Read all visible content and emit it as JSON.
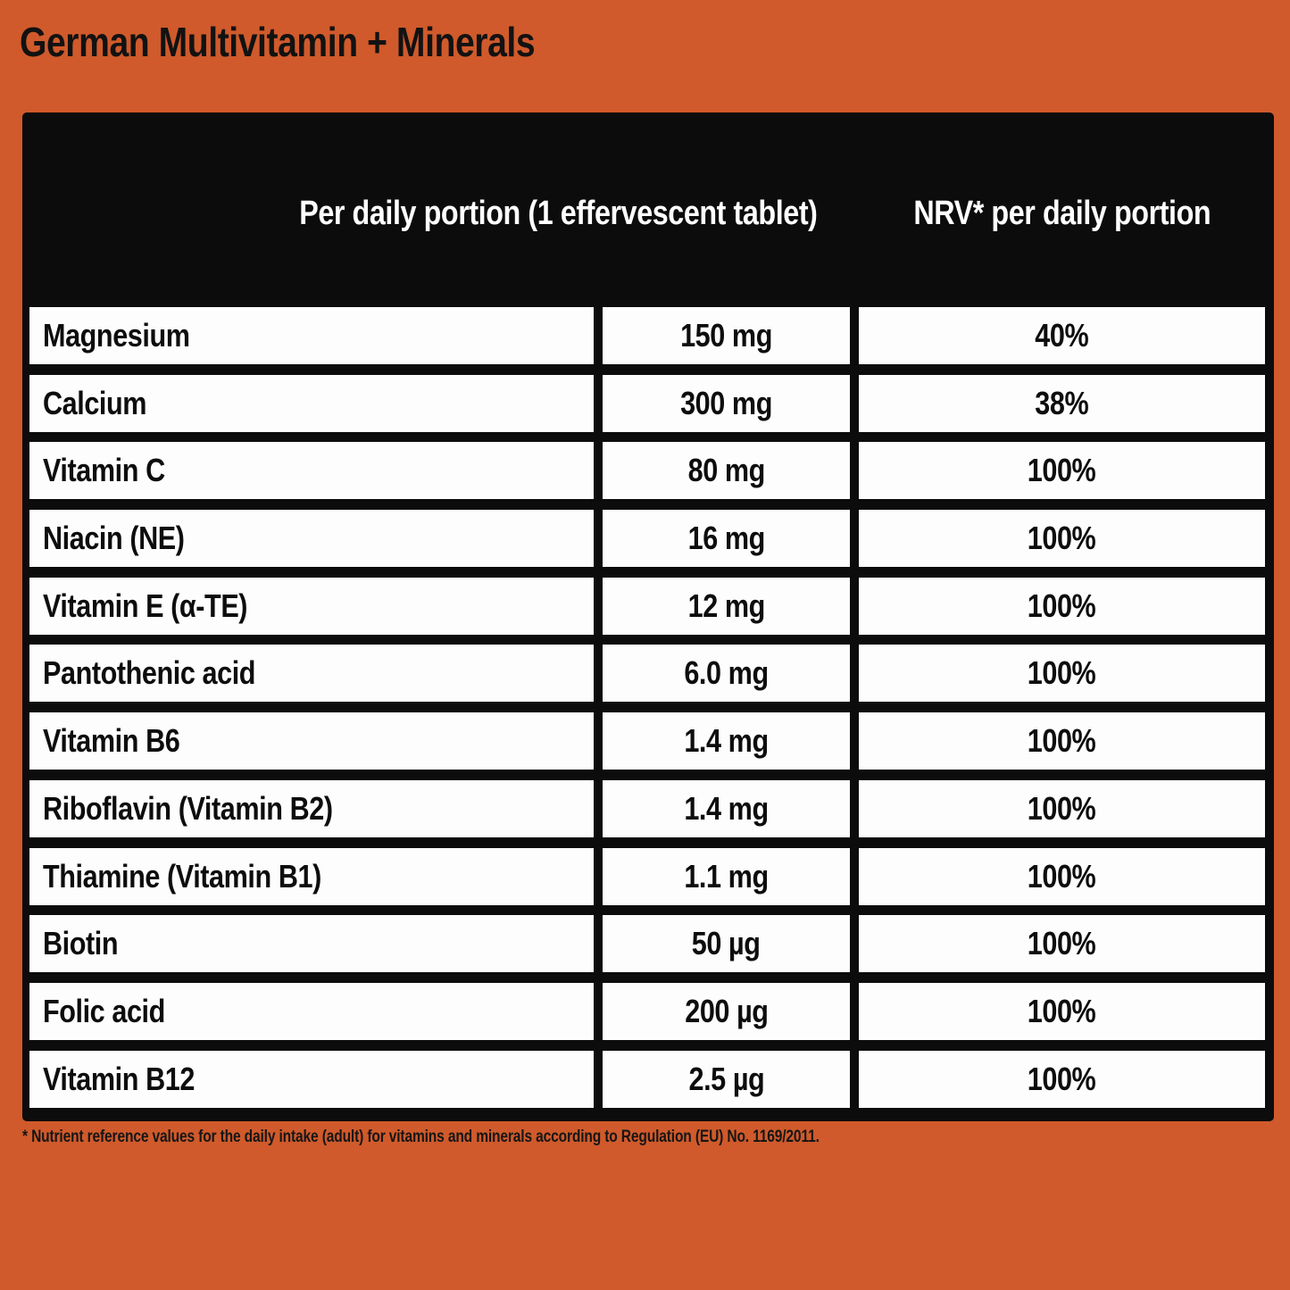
{
  "title": "German Multivitamin + Minerals",
  "table": {
    "headers": {
      "portion": "Per daily portion (1 effervescent tablet)",
      "nrv": "NRV* per daily portion"
    },
    "rows": [
      {
        "name": "Magnesium",
        "amount": "150 mg",
        "nrv": "40%"
      },
      {
        "name": "Calcium",
        "amount": "300 mg",
        "nrv": "38%"
      },
      {
        "name": "Vitamin C",
        "amount": "80 mg",
        "nrv": "100%"
      },
      {
        "name": "Niacin (NE)",
        "amount": "16 mg",
        "nrv": "100%"
      },
      {
        "name": "Vitamin E (α-TE)",
        "amount": "12 mg",
        "nrv": "100%"
      },
      {
        "name": "Pantothenic acid",
        "amount": "6.0 mg",
        "nrv": "100%"
      },
      {
        "name": "Vitamin B6",
        "amount": "1.4 mg",
        "nrv": "100%"
      },
      {
        "name": "Riboflavin (Vitamin B2)",
        "amount": "1.4 mg",
        "nrv": "100%"
      },
      {
        "name": "Thiamine (Vitamin B1)",
        "amount": "1.1 mg",
        "nrv": "100%"
      },
      {
        "name": "Biotin",
        "amount": "50 µg",
        "nrv": "100%"
      },
      {
        "name": "Folic acid",
        "amount": "200 µg",
        "nrv": "100%"
      },
      {
        "name": "Vitamin B12",
        "amount": "2.5 µg",
        "nrv": "100%"
      }
    ]
  },
  "footnote": "* Nutrient reference values for the daily intake (adult) for vitamins and minerals according to Regulation (EU) No. 1169/2011.",
  "colors": {
    "background": "#d05a2b",
    "table_background": "#0c0c0c",
    "cell_background": "#fdfdfd",
    "header_text": "#ffffff",
    "body_text": "#0d0d0d"
  }
}
